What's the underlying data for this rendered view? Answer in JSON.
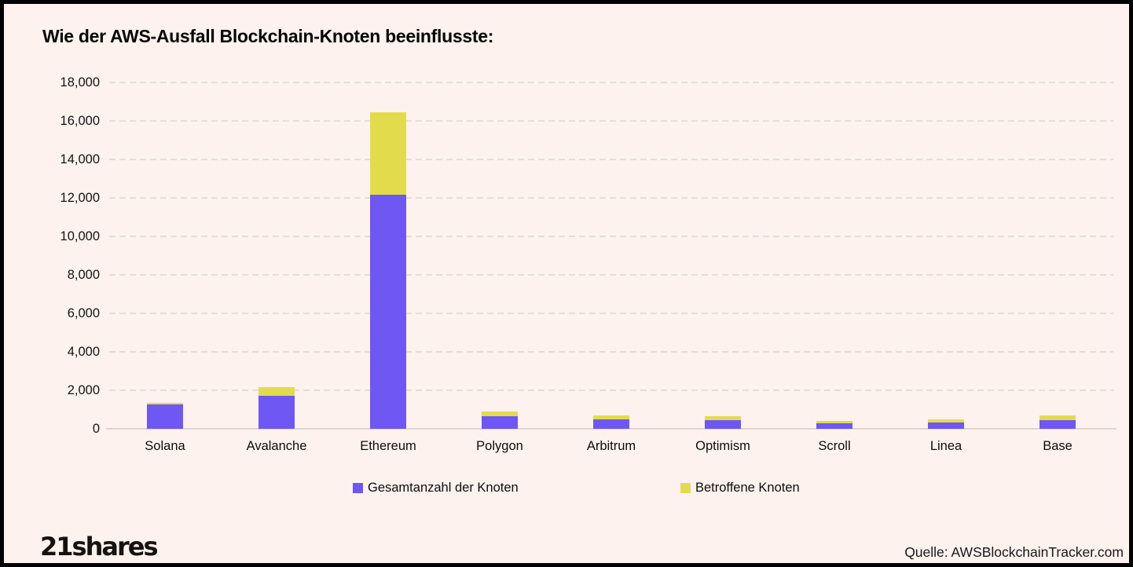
{
  "title": "Wie der AWS-Ausfall Blockchain-Knoten beeinflusste:",
  "footer": {
    "brand": "21shares",
    "source": "Quelle: AWSBlockchainTracker.com"
  },
  "colors": {
    "background": "#FDF2ED",
    "border": "#000000",
    "text": "#111111",
    "gridline": "#E2DFD9",
    "axis_line": "#DBD7D2",
    "bar_total": "#6E57F3",
    "bar_affected": "#E2DC4C"
  },
  "chart_data": {
    "type": "bar",
    "stacked": true,
    "title": "Wie der AWS-Ausfall Blockchain-Knoten beeinflusste:",
    "categories": [
      "Solana",
      "Avalanche",
      "Ethereum",
      "Polygon",
      "Arbitrum",
      "Optimism",
      "Scroll",
      "Linea",
      "Base"
    ],
    "series": [
      {
        "name": "Gesamtanzahl der Knoten",
        "color": "#6E57F3",
        "values": [
          1250,
          1730,
          12150,
          650,
          500,
          450,
          270,
          310,
          440
        ]
      },
      {
        "name": "Betroffene Knoten",
        "color": "#E2DC4C",
        "values": [
          90,
          420,
          4300,
          240,
          200,
          210,
          130,
          160,
          260
        ]
      }
    ],
    "xlabel": "",
    "ylabel": "",
    "ylim": [
      0,
      18000
    ],
    "ytick_interval": 2000,
    "ytick_labels": [
      "0",
      "2,000",
      "4,000",
      "6,000",
      "8,000",
      "10,000",
      "12,000",
      "14,000",
      "16,000",
      "18,000"
    ],
    "grid": "horizontal-dashed",
    "legend_position": "bottom"
  }
}
